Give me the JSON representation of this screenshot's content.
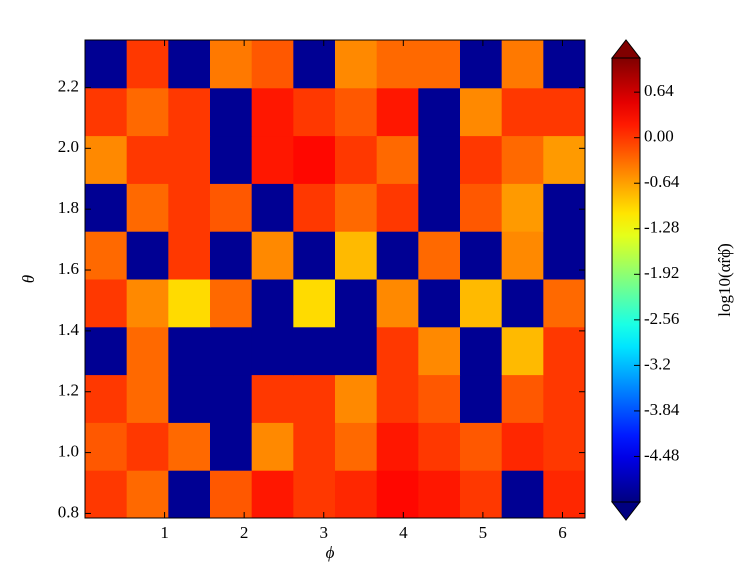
{
  "chart_data": {
    "type": "heatmap",
    "xlabel": "ϕ",
    "ylabel": "θ",
    "colorbar_label": "log10(αr̂ϕ̂)",
    "colormap": "jet",
    "extend": "both",
    "xlim": [
      0,
      6.283
    ],
    "ylim": [
      0.785,
      2.356
    ],
    "xticks": [
      1,
      2,
      3,
      4,
      5,
      6
    ],
    "yticks": [
      0.8,
      {
        "value": 1.0,
        "label": "1.0"
      },
      1.2,
      1.4,
      1.6,
      1.8,
      {
        "value": 2.0,
        "label": "2.0"
      },
      2.2
    ],
    "clim": [
      -5.12,
      1.12
    ],
    "cticks": [
      0.64,
      {
        "value": 0,
        "label": "0.00"
      },
      -0.64,
      -1.28,
      -1.92,
      -2.56,
      -3.2,
      -3.84,
      -4.48
    ],
    "z": [
      [
        0,
        -0.3,
        -5,
        -0.2,
        0.2,
        0,
        0.1,
        0.3,
        0.2,
        0,
        -5,
        0.1
      ],
      [
        -0.2,
        0,
        -0.3,
        -5,
        -0.5,
        0,
        -0.3,
        0.2,
        0,
        -0.2,
        0.1,
        0
      ],
      [
        0,
        -0.3,
        -5,
        -5,
        0,
        0,
        -0.5,
        0,
        -0.2,
        -5,
        -0.2,
        0
      ],
      [
        -5,
        -0.3,
        -5,
        -5,
        -5,
        -5,
        -5,
        0,
        -0.5,
        -5,
        -0.8,
        0
      ],
      [
        0,
        -0.5,
        -1,
        -0.3,
        -5,
        -1,
        -5,
        -0.5,
        -5,
        -0.8,
        -5,
        -0.3
      ],
      [
        -0.3,
        -5,
        0,
        -5,
        -0.5,
        -5,
        -0.8,
        -5,
        -0.3,
        -5,
        -0.5,
        -5
      ],
      [
        -5,
        -0.3,
        0,
        -0.2,
        -5,
        0,
        -0.3,
        0,
        -5,
        -0.2,
        -0.6,
        -5
      ],
      [
        -0.5,
        0,
        0,
        -5,
        0.2,
        0.3,
        0,
        -0.3,
        -5,
        0,
        -0.3,
        -0.6
      ],
      [
        0,
        -0.3,
        0,
        -5,
        0.2,
        0,
        -0.2,
        0.2,
        -5,
        -0.5,
        0,
        0
      ],
      [
        -5,
        0,
        -5,
        -0.4,
        -0.2,
        -5,
        -0.5,
        -0.3,
        -0.3,
        -5,
        -0.4,
        -5
      ]
    ]
  }
}
